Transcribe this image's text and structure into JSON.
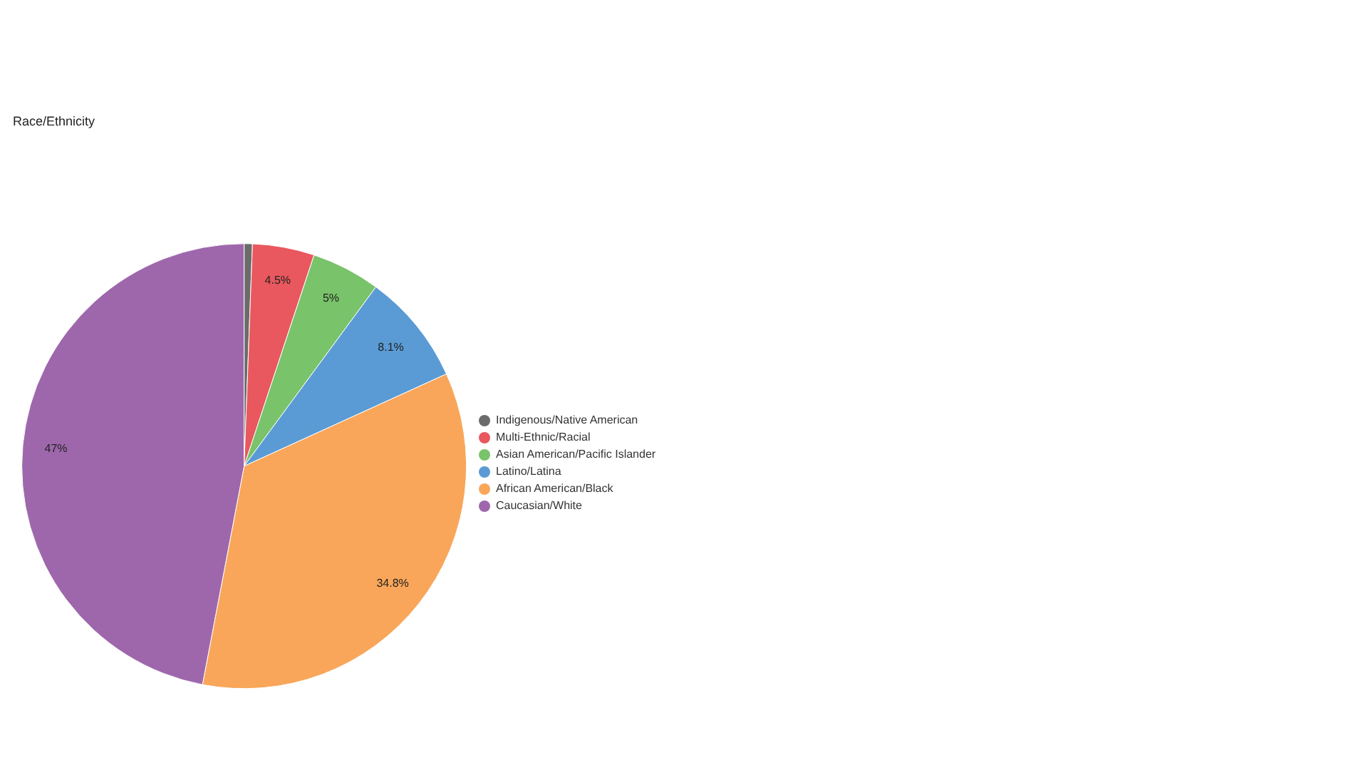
{
  "chart_data": {
    "type": "pie",
    "title": "Race/Ethnicity",
    "categories": [
      "Indigenous/Native American",
      "Multi-Ethnic/Racial",
      "Asian American/Pacific Islander",
      "Latino/Latina",
      "African American/Black",
      "Caucasian/White"
    ],
    "values": [
      0.6,
      4.5,
      5,
      8.1,
      34.8,
      47
    ],
    "value_labels": [
      null,
      "4.5%",
      "5%",
      "8.1%",
      "34.8%",
      "47%"
    ],
    "colors": [
      "#6b6b6b",
      "#e8585e",
      "#79c36a",
      "#5a9bd5",
      "#f9a65a",
      "#9e67ab"
    ],
    "legend": "right"
  }
}
